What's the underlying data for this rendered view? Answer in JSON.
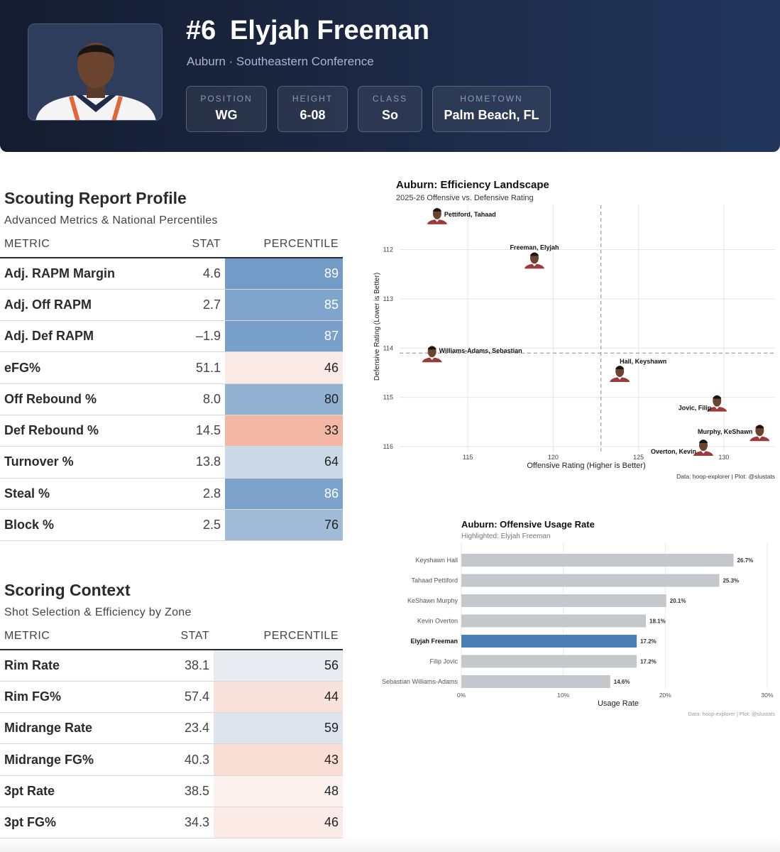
{
  "player": {
    "number": "#6",
    "name": "Elyjah Freeman",
    "team_line": "Auburn · Southeastern Conference",
    "attributes": [
      {
        "label": "POSITION",
        "value": "WG"
      },
      {
        "label": "HEIGHT",
        "value": "6-08"
      },
      {
        "label": "CLASS",
        "value": "So"
      },
      {
        "label": "HOMETOWN",
        "value": "Palm Beach, FL"
      }
    ]
  },
  "scouting": {
    "title": "Scouting Report Profile",
    "subtitle": "Advanced Metrics & National Percentiles",
    "headers": {
      "metric": "METRIC",
      "stat": "STAT",
      "percentile": "PERCENTILE"
    },
    "rows": [
      {
        "metric": "Adj. RAPM Margin",
        "stat": "4.6",
        "percentile": 89
      },
      {
        "metric": "Adj. Off RAPM",
        "stat": "2.7",
        "percentile": 85
      },
      {
        "metric": "Adj. Def RAPM",
        "stat": "–1.9",
        "percentile": 87
      },
      {
        "metric": "eFG%",
        "stat": "51.1",
        "percentile": 46
      },
      {
        "metric": "Off Rebound %",
        "stat": "8.0",
        "percentile": 80
      },
      {
        "metric": "Def Rebound %",
        "stat": "14.5",
        "percentile": 33
      },
      {
        "metric": "Turnover %",
        "stat": "13.8",
        "percentile": 64
      },
      {
        "metric": "Steal %",
        "stat": "2.8",
        "percentile": 86
      },
      {
        "metric": "Block %",
        "stat": "2.5",
        "percentile": 76
      }
    ]
  },
  "scoring": {
    "title": "Scoring Context",
    "subtitle": "Shot Selection & Efficiency by Zone",
    "headers": {
      "metric": "METRIC",
      "stat": "STAT",
      "percentile": "PERCENTILE"
    },
    "rows": [
      {
        "metric": "Rim Rate",
        "stat": "38.1",
        "percentile": 56
      },
      {
        "metric": "Rim FG%",
        "stat": "57.4",
        "percentile": 44
      },
      {
        "metric": "Midrange Rate",
        "stat": "23.4",
        "percentile": 59
      },
      {
        "metric": "Midrange FG%",
        "stat": "40.3",
        "percentile": 43
      },
      {
        "metric": "3pt Rate",
        "stat": "38.5",
        "percentile": 48
      },
      {
        "metric": "3pt FG%",
        "stat": "34.3",
        "percentile": 46
      }
    ]
  },
  "colors": {
    "header_bg": "#1a2540",
    "highlight_bar": "#4a7fb5",
    "other_bar": "#c4c8cc",
    "pct_high": "#6e99c7",
    "pct_low": "#f3b7a6"
  },
  "chart_data": [
    {
      "type": "scatter",
      "title": "Auburn: Efficiency Landscape",
      "subtitle": "2025-26 Offensive vs. Defensive Rating",
      "xlabel": "Offensive Rating (Higher is Better)",
      "ylabel": "Defensive Rating (Lower is Better)",
      "caption": "Data: hoop-explorer | Plot: @slustats",
      "xlim": [
        111,
        133
      ],
      "ylim": [
        111.1,
        116.1
      ],
      "y_reversed": true,
      "xticks": [
        115,
        120,
        125,
        130
      ],
      "yticks": [
        112,
        113,
        114,
        115,
        116
      ],
      "reference_lines": {
        "x": 122.8,
        "y": 114.1
      },
      "points": [
        {
          "label": "Pettiford, Tahaad",
          "x": 113.2,
          "y": 111.3
        },
        {
          "label": "Freeman, Elyjah",
          "x": 118.9,
          "y": 112.2
        },
        {
          "label": "Williams-Adams, Sebastian",
          "x": 112.9,
          "y": 114.1
        },
        {
          "label": "Hall, Keyshawn",
          "x": 123.9,
          "y": 114.5
        },
        {
          "label": "Jovic, Filip",
          "x": 129.6,
          "y": 115.1
        },
        {
          "label": "Murphy, KeShawn",
          "x": 132.1,
          "y": 115.7
        },
        {
          "label": "Overton, Kevin",
          "x": 128.8,
          "y": 116.0
        }
      ]
    },
    {
      "type": "bar",
      "orientation": "horizontal",
      "title": "Auburn: Offensive Usage Rate",
      "subtitle": "Highlighted: Elyjah Freeman",
      "xlabel": "Usage Rate",
      "caption": "Data: hoop-explorer | Plot: @slustats",
      "xlim": [
        0,
        30
      ],
      "xticks": [
        "0%",
        "10%",
        "20%",
        "30%"
      ],
      "highlight": "Elyjah Freeman",
      "categories": [
        "Keyshawn Hall",
        "Tahaad Pettiford",
        "KeShawn Murphy",
        "Kevin Overton",
        "Elyjah Freeman",
        "Filip Jovic",
        "Sebastian Williams-Adams"
      ],
      "values": [
        26.7,
        25.3,
        20.1,
        18.1,
        17.2,
        17.2,
        14.6
      ],
      "value_labels": [
        "26.7%",
        "25.3%",
        "20.1%",
        "18.1%",
        "17.2%",
        "17.2%",
        "14.6%"
      ]
    }
  ]
}
